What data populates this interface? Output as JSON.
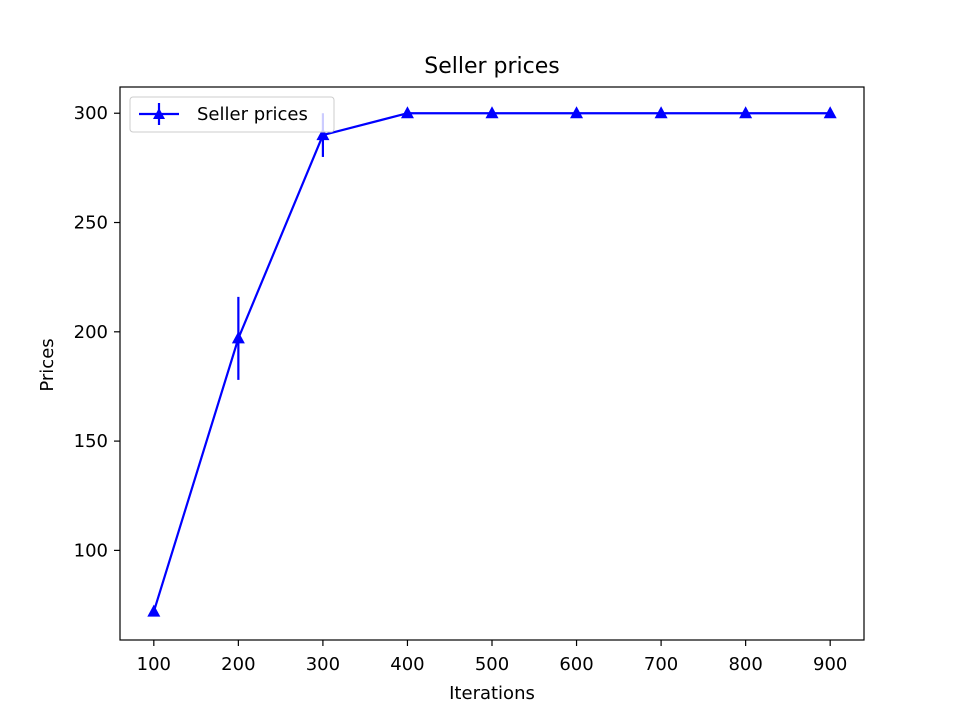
{
  "chart_data": {
    "type": "line",
    "title": "Seller prices",
    "xlabel": "Iterations",
    "ylabel": "Prices",
    "x": [
      100,
      200,
      300,
      400,
      500,
      600,
      700,
      800,
      900
    ],
    "series": [
      {
        "name": "Seller prices",
        "values": [
          72,
          197,
          290,
          300,
          300,
          300,
          300,
          300,
          300
        ],
        "errors": [
          0,
          19,
          10,
          0,
          0,
          0,
          0,
          0,
          0
        ],
        "marker": "triangle-up",
        "color": "#0000ff"
      }
    ],
    "xlim": [
      60,
      940
    ],
    "ylim": [
      59,
      312
    ],
    "xticks": [
      100,
      200,
      300,
      400,
      500,
      600,
      700,
      800,
      900
    ],
    "yticks": [
      100,
      150,
      200,
      250,
      300
    ],
    "grid": false,
    "legend_position": "top-left"
  }
}
